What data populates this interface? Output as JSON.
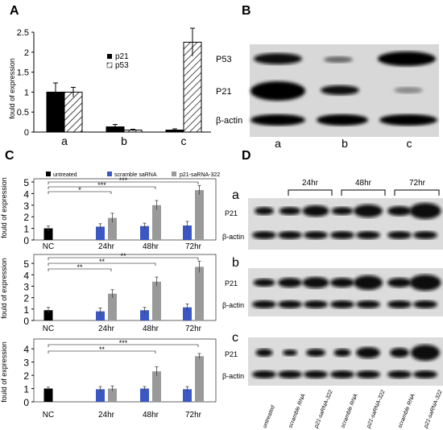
{
  "panels": {
    "A": "A",
    "B": "B",
    "C": "C",
    "D": "D"
  },
  "panelA": {
    "ylabel": "fould of expression",
    "yticks": [
      "0",
      "0.5",
      "1",
      "1.5",
      "2",
      "2.5"
    ],
    "legend": [
      "p21",
      "p53"
    ],
    "categories": [
      "a",
      "b",
      "c"
    ]
  },
  "panelB": {
    "rows": [
      "P53",
      "P21",
      "β-actin"
    ],
    "lanes": [
      "a",
      "b",
      "c"
    ]
  },
  "panelC": {
    "legend": [
      "untreated",
      "scramble saRNA",
      "p21-saRNA-322"
    ],
    "ylabel": "fould of expression",
    "xlabels": [
      "NC",
      "24hr",
      "48hr",
      "72hr"
    ],
    "sub1": {
      "yticks": [
        "0",
        "1",
        "2",
        "3",
        "4",
        "5"
      ],
      "sig": [
        "*",
        "***",
        "***"
      ]
    },
    "sub2": {
      "yticks": [
        "0",
        "1",
        "2",
        "3",
        "4",
        "5"
      ],
      "sig": [
        "**",
        "**",
        "**"
      ]
    },
    "sub3": {
      "yticks": [
        "0",
        "1",
        "2",
        "3",
        "4"
      ],
      "sig": [
        "**",
        "***"
      ]
    }
  },
  "panelD": {
    "times": [
      "24hr",
      "48hr",
      "72hr"
    ],
    "subpanels": [
      "a",
      "b",
      "c"
    ],
    "rows": [
      "P21",
      "β-actin"
    ],
    "lanes": [
      "untreated",
      "scramble RNA",
      "p21-saRNA-322",
      "scramble RNA",
      "p21-saRNA-322",
      "scramble RNA",
      "p21-saRNA-322"
    ]
  },
  "chart_data": [
    {
      "type": "bar",
      "ylabel": "fould of expression",
      "categories": [
        "a",
        "b",
        "c"
      ],
      "ylim": [
        0,
        2.5
      ],
      "series": [
        {
          "name": "p21",
          "values": [
            1.0,
            0.13,
            0.05
          ],
          "errors": [
            0.23,
            0.06,
            0.03
          ]
        },
        {
          "name": "p53",
          "values": [
            1.0,
            0.05,
            2.25
          ],
          "errors": [
            0.12,
            0.02,
            0.35
          ]
        }
      ]
    },
    {
      "type": "bar",
      "ylabel": "fould of expression",
      "categories": [
        "NC",
        "24hr",
        "48hr",
        "72hr"
      ],
      "ylim": [
        0,
        5
      ],
      "series": [
        {
          "name": "untreated",
          "values": [
            1.0,
            null,
            null,
            null
          ],
          "errors": [
            0.2,
            null,
            null,
            null
          ]
        },
        {
          "name": "scramble saRNA",
          "values": [
            null,
            1.15,
            1.2,
            1.25
          ],
          "errors": [
            null,
            0.25,
            0.25,
            0.35
          ]
        },
        {
          "name": "p21-saRNA-322",
          "values": [
            null,
            1.9,
            3.0,
            4.3
          ],
          "errors": [
            null,
            0.4,
            0.4,
            0.4
          ]
        }
      ]
    },
    {
      "type": "bar",
      "ylabel": "fould of expression",
      "categories": [
        "NC",
        "24hr",
        "48hr",
        "72hr"
      ],
      "ylim": [
        0,
        5.5
      ],
      "series": [
        {
          "name": "untreated",
          "values": [
            0.9,
            null,
            null,
            null
          ],
          "errors": [
            0.25,
            null,
            null,
            null
          ]
        },
        {
          "name": "scramble saRNA",
          "values": [
            null,
            0.8,
            0.9,
            1.15
          ],
          "errors": [
            null,
            0.3,
            0.25,
            0.3
          ]
        },
        {
          "name": "p21-saRNA-322",
          "values": [
            null,
            2.35,
            3.4,
            4.7
          ],
          "errors": [
            null,
            0.35,
            0.4,
            0.5
          ]
        }
      ]
    },
    {
      "type": "bar",
      "ylabel": "fould of expression",
      "categories": [
        "NC",
        "24hr",
        "48hr",
        "72hr"
      ],
      "ylim": [
        0,
        4.5
      ],
      "series": [
        {
          "name": "untreated",
          "values": [
            1.0,
            null,
            null,
            null
          ],
          "errors": [
            0.1,
            null,
            null,
            null
          ]
        },
        {
          "name": "scramble saRNA",
          "values": [
            null,
            0.95,
            1.0,
            0.95
          ],
          "errors": [
            null,
            0.2,
            0.15,
            0.2
          ]
        },
        {
          "name": "p21-saRNA-322",
          "values": [
            null,
            1.0,
            2.3,
            3.45
          ],
          "errors": [
            null,
            0.2,
            0.35,
            0.2
          ]
        }
      ]
    }
  ]
}
